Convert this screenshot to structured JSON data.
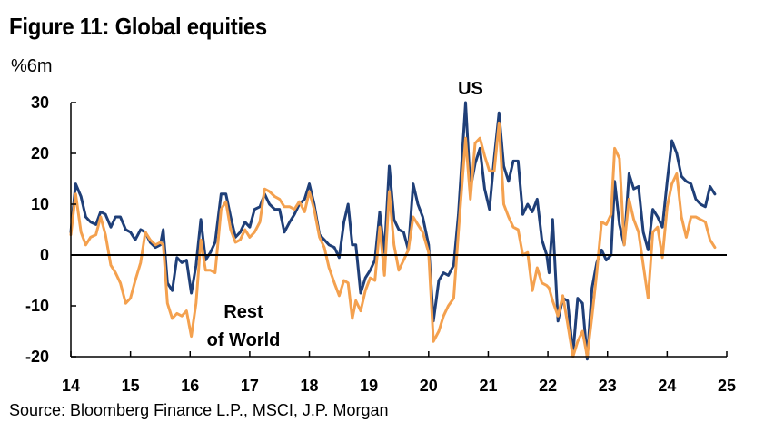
{
  "figure": {
    "title": "Figure 11: Global equities",
    "unit_label": "%6m",
    "source": "Source: Bloomberg Finance L.P., MSCI, J.P. Morgan"
  },
  "chart_data": {
    "type": "line",
    "title": "Figure 11: Global equities",
    "ylabel": "%6m",
    "xlabel": "",
    "xlim": [
      14,
      25
    ],
    "ylim": [
      -20,
      30
    ],
    "x_ticks": [
      "14",
      "15",
      "16",
      "17",
      "18",
      "19",
      "20",
      "21",
      "22",
      "23",
      "24",
      "25"
    ],
    "y_ticks": [
      "30",
      "20",
      "10",
      "0",
      "-10",
      "-20"
    ],
    "grid": false,
    "legend": "none",
    "annotations": [
      {
        "text": "US",
        "series": "US"
      },
      {
        "text": "Rest",
        "series": "Rest of World"
      },
      {
        "text": "of World",
        "series": "Rest of World"
      }
    ],
    "series": [
      {
        "name": "US",
        "color": "#1f3f78",
        "points": [
          [
            14.0,
            4.5
          ],
          [
            14.08,
            14.0
          ],
          [
            14.17,
            11.5
          ],
          [
            14.25,
            7.5
          ],
          [
            14.33,
            6.5
          ],
          [
            14.42,
            6.0
          ],
          [
            14.5,
            8.5
          ],
          [
            14.58,
            8.0
          ],
          [
            14.67,
            5.5
          ],
          [
            14.75,
            7.5
          ],
          [
            14.83,
            7.5
          ],
          [
            14.92,
            5.0
          ],
          [
            15.0,
            4.5
          ],
          [
            15.08,
            3.0
          ],
          [
            15.17,
            5.0
          ],
          [
            15.25,
            4.5
          ],
          [
            15.33,
            2.5
          ],
          [
            15.42,
            1.5
          ],
          [
            15.5,
            2.0
          ],
          [
            15.55,
            5.0
          ],
          [
            15.62,
            -5.5
          ],
          [
            15.7,
            -7.0
          ],
          [
            15.78,
            -0.5
          ],
          [
            15.86,
            -1.5
          ],
          [
            15.94,
            -1.0
          ],
          [
            16.02,
            -7.5
          ],
          [
            16.1,
            -2.0
          ],
          [
            16.18,
            7.0
          ],
          [
            16.26,
            -1.0
          ],
          [
            16.34,
            0.5
          ],
          [
            16.42,
            2.5
          ],
          [
            16.52,
            12.0
          ],
          [
            16.6,
            12.0
          ],
          [
            16.68,
            7.5
          ],
          [
            16.76,
            3.5
          ],
          [
            16.84,
            4.5
          ],
          [
            16.92,
            6.5
          ],
          [
            17.0,
            5.5
          ],
          [
            17.08,
            9.0
          ],
          [
            17.17,
            9.5
          ],
          [
            17.25,
            12.0
          ],
          [
            17.33,
            10.0
          ],
          [
            17.42,
            9.0
          ],
          [
            17.5,
            9.0
          ],
          [
            17.58,
            4.5
          ],
          [
            17.67,
            6.5
          ],
          [
            17.75,
            8.0
          ],
          [
            17.83,
            10.0
          ],
          [
            17.92,
            11.0
          ],
          [
            18.0,
            14.0
          ],
          [
            18.08,
            10.0
          ],
          [
            18.17,
            4.0
          ],
          [
            18.25,
            3.0
          ],
          [
            18.33,
            2.0
          ],
          [
            18.42,
            1.5
          ],
          [
            18.5,
            -0.5
          ],
          [
            18.58,
            6.5
          ],
          [
            18.65,
            10.0
          ],
          [
            18.72,
            2.0
          ],
          [
            18.78,
            2.0
          ],
          [
            18.86,
            -7.5
          ],
          [
            18.94,
            -4.5
          ],
          [
            19.02,
            -3.0
          ],
          [
            19.1,
            -1.0
          ],
          [
            19.18,
            8.5
          ],
          [
            19.26,
            0.5
          ],
          [
            19.34,
            17.5
          ],
          [
            19.42,
            7.0
          ],
          [
            19.5,
            5.0
          ],
          [
            19.58,
            4.5
          ],
          [
            19.66,
            1.0
          ],
          [
            19.74,
            14.0
          ],
          [
            19.82,
            10.0
          ],
          [
            19.9,
            7.5
          ],
          [
            20.0,
            2.0
          ],
          [
            20.08,
            -13.0
          ],
          [
            20.17,
            -5.0
          ],
          [
            20.25,
            -3.5
          ],
          [
            20.33,
            -4.0
          ],
          [
            20.42,
            -2.0
          ],
          [
            20.5,
            8.0
          ],
          [
            20.62,
            30.0
          ],
          [
            20.7,
            13.0
          ],
          [
            20.78,
            18.0
          ],
          [
            20.86,
            21.0
          ],
          [
            20.94,
            13.0
          ],
          [
            21.02,
            9.0
          ],
          [
            21.1,
            19.0
          ],
          [
            21.18,
            28.0
          ],
          [
            21.26,
            17.5
          ],
          [
            21.34,
            14.5
          ],
          [
            21.42,
            18.5
          ],
          [
            21.5,
            18.5
          ],
          [
            21.58,
            8.0
          ],
          [
            21.66,
            10.0
          ],
          [
            21.74,
            8.5
          ],
          [
            21.82,
            11.0
          ],
          [
            21.9,
            3.0
          ],
          [
            21.98,
            0.0
          ],
          [
            22.02,
            -3.5
          ],
          [
            22.08,
            7.0
          ],
          [
            22.17,
            -13.0
          ],
          [
            22.25,
            -8.5
          ],
          [
            22.33,
            -9.0
          ],
          [
            22.42,
            -19.5
          ],
          [
            22.5,
            -8.5
          ],
          [
            22.58,
            -9.5
          ],
          [
            22.66,
            -20.5
          ],
          [
            22.74,
            -6.5
          ],
          [
            22.82,
            -1.5
          ],
          [
            22.9,
            1.0
          ],
          [
            22.98,
            -1.0
          ],
          [
            23.06,
            0.0
          ],
          [
            23.12,
            14.5
          ],
          [
            23.2,
            6.0
          ],
          [
            23.28,
            2.0
          ],
          [
            23.36,
            16.0
          ],
          [
            23.44,
            13.0
          ],
          [
            23.52,
            13.5
          ],
          [
            23.6,
            4.5
          ],
          [
            23.68,
            1.0
          ],
          [
            23.76,
            9.0
          ],
          [
            23.84,
            7.5
          ],
          [
            23.92,
            5.5
          ],
          [
            24.0,
            14.5
          ],
          [
            24.08,
            22.5
          ],
          [
            24.16,
            20.0
          ],
          [
            24.24,
            15.5
          ],
          [
            24.32,
            14.5
          ],
          [
            24.4,
            14.0
          ],
          [
            24.48,
            11.0
          ],
          [
            24.56,
            10.0
          ],
          [
            24.64,
            9.5
          ],
          [
            24.72,
            13.5
          ],
          [
            24.8,
            12.0
          ]
        ]
      },
      {
        "name": "Rest of World",
        "color": "#f4a14f",
        "points": [
          [
            14.0,
            4.0
          ],
          [
            14.08,
            12.0
          ],
          [
            14.17,
            4.5
          ],
          [
            14.25,
            2.0
          ],
          [
            14.33,
            3.5
          ],
          [
            14.42,
            4.0
          ],
          [
            14.5,
            7.5
          ],
          [
            14.58,
            4.0
          ],
          [
            14.67,
            -2.0
          ],
          [
            14.75,
            -3.5
          ],
          [
            14.83,
            -5.5
          ],
          [
            14.92,
            -9.5
          ],
          [
            15.0,
            -8.5
          ],
          [
            15.08,
            -5.0
          ],
          [
            15.17,
            -1.5
          ],
          [
            15.25,
            4.5
          ],
          [
            15.33,
            3.0
          ],
          [
            15.42,
            2.0
          ],
          [
            15.5,
            2.5
          ],
          [
            15.55,
            2.0
          ],
          [
            15.62,
            -9.5
          ],
          [
            15.7,
            -12.5
          ],
          [
            15.78,
            -11.5
          ],
          [
            15.86,
            -12.0
          ],
          [
            15.94,
            -11.0
          ],
          [
            16.02,
            -16.0
          ],
          [
            16.1,
            -9.5
          ],
          [
            16.18,
            3.0
          ],
          [
            16.26,
            -3.0
          ],
          [
            16.34,
            -3.0
          ],
          [
            16.42,
            -3.5
          ],
          [
            16.52,
            9.0
          ],
          [
            16.6,
            10.5
          ],
          [
            16.68,
            5.0
          ],
          [
            16.76,
            2.5
          ],
          [
            16.84,
            3.0
          ],
          [
            16.92,
            5.0
          ],
          [
            17.0,
            3.5
          ],
          [
            17.08,
            4.5
          ],
          [
            17.17,
            6.5
          ],
          [
            17.25,
            13.0
          ],
          [
            17.33,
            12.5
          ],
          [
            17.42,
            11.5
          ],
          [
            17.5,
            11.0
          ],
          [
            17.58,
            9.5
          ],
          [
            17.67,
            9.5
          ],
          [
            17.75,
            9.0
          ],
          [
            17.83,
            10.5
          ],
          [
            17.92,
            8.5
          ],
          [
            18.0,
            12.5
          ],
          [
            18.08,
            9.0
          ],
          [
            18.17,
            3.5
          ],
          [
            18.25,
            1.5
          ],
          [
            18.33,
            -2.5
          ],
          [
            18.42,
            -5.5
          ],
          [
            18.5,
            -8.0
          ],
          [
            18.58,
            -5.0
          ],
          [
            18.65,
            -5.5
          ],
          [
            18.72,
            -12.5
          ],
          [
            18.78,
            -9.0
          ],
          [
            18.86,
            -11.0
          ],
          [
            18.94,
            -7.0
          ],
          [
            19.02,
            -4.5
          ],
          [
            19.1,
            -5.0
          ],
          [
            19.18,
            5.5
          ],
          [
            19.26,
            -4.0
          ],
          [
            19.34,
            12.5
          ],
          [
            19.42,
            2.0
          ],
          [
            19.5,
            -3.0
          ],
          [
            19.58,
            -1.0
          ],
          [
            19.66,
            1.0
          ],
          [
            19.74,
            7.5
          ],
          [
            19.82,
            6.0
          ],
          [
            19.9,
            4.5
          ],
          [
            20.0,
            0.5
          ],
          [
            20.08,
            -17.0
          ],
          [
            20.17,
            -15.0
          ],
          [
            20.25,
            -12.0
          ],
          [
            20.33,
            -10.0
          ],
          [
            20.42,
            -8.5
          ],
          [
            20.5,
            4.5
          ],
          [
            20.62,
            23.0
          ],
          [
            20.7,
            11.0
          ],
          [
            20.78,
            22.0
          ],
          [
            20.86,
            23.0
          ],
          [
            20.94,
            19.5
          ],
          [
            21.02,
            16.5
          ],
          [
            21.1,
            16.5
          ],
          [
            21.18,
            26.0
          ],
          [
            21.26,
            10.0
          ],
          [
            21.34,
            7.5
          ],
          [
            21.42,
            5.5
          ],
          [
            21.5,
            5.0
          ],
          [
            21.58,
            0.0
          ],
          [
            21.66,
            0.5
          ],
          [
            21.74,
            -7.0
          ],
          [
            21.82,
            -2.5
          ],
          [
            21.9,
            -5.5
          ],
          [
            21.98,
            -6.0
          ],
          [
            22.02,
            -6.5
          ],
          [
            22.08,
            -9.0
          ],
          [
            22.17,
            -12.0
          ],
          [
            22.25,
            -8.0
          ],
          [
            22.33,
            -13.5
          ],
          [
            22.42,
            -20.0
          ],
          [
            22.5,
            -17.0
          ],
          [
            22.58,
            -15.0
          ],
          [
            22.66,
            -20.0
          ],
          [
            22.74,
            -12.0
          ],
          [
            22.82,
            -3.5
          ],
          [
            22.9,
            6.5
          ],
          [
            22.98,
            6.0
          ],
          [
            23.06,
            8.0
          ],
          [
            23.12,
            21.0
          ],
          [
            23.2,
            19.0
          ],
          [
            23.28,
            2.0
          ],
          [
            23.36,
            11.0
          ],
          [
            23.44,
            7.0
          ],
          [
            23.52,
            4.5
          ],
          [
            23.6,
            -2.0
          ],
          [
            23.68,
            -8.5
          ],
          [
            23.76,
            4.5
          ],
          [
            23.84,
            5.5
          ],
          [
            23.92,
            -0.5
          ],
          [
            24.0,
            9.5
          ],
          [
            24.08,
            14.0
          ],
          [
            24.16,
            16.0
          ],
          [
            24.24,
            7.5
          ],
          [
            24.32,
            3.5
          ],
          [
            24.4,
            7.5
          ],
          [
            24.48,
            7.5
          ],
          [
            24.56,
            7.0
          ],
          [
            24.64,
            6.5
          ],
          [
            24.72,
            3.0
          ],
          [
            24.8,
            1.5
          ]
        ]
      }
    ]
  }
}
